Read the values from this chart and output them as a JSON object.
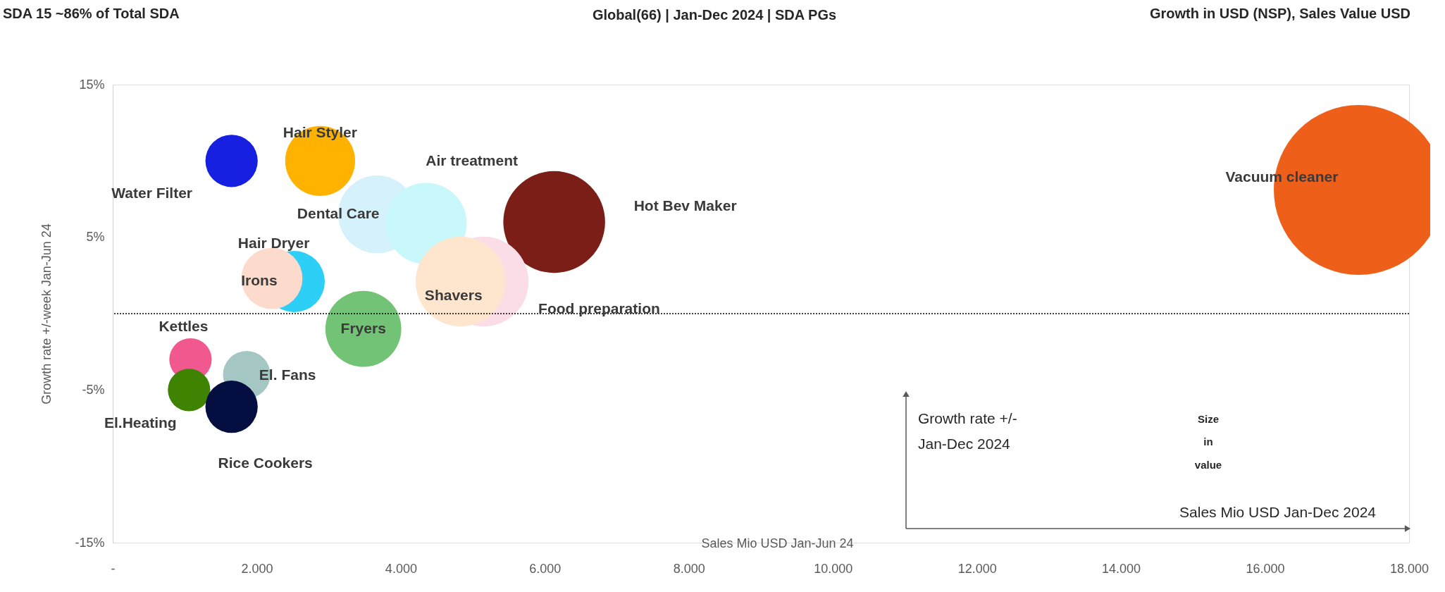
{
  "chart_data": {
    "type": "bubble",
    "title": "Global(66) | Jan-Dec 2024 | SDA PGs",
    "xlabel": "Sales Mio USD Jan-Jun 24",
    "ylabel": "Growth rate +/-week Jan-Jun 24",
    "xlim": [
      0,
      18000
    ],
    "ylim": [
      -15,
      15
    ],
    "xticks": [
      {
        "value": 0,
        "label": "-"
      },
      {
        "value": 2000,
        "label": "2.000"
      },
      {
        "value": 4000,
        "label": "4.000"
      },
      {
        "value": 6000,
        "label": "6.000"
      },
      {
        "value": 8000,
        "label": "8.000"
      },
      {
        "value": 10000,
        "label": "10.000"
      },
      {
        "value": 12000,
        "label": "12.000"
      },
      {
        "value": 14000,
        "label": "14.000"
      },
      {
        "value": 16000,
        "label": "16.000"
      },
      {
        "value": 18000,
        "label": "18.000"
      }
    ],
    "yticks": [
      {
        "value": -15,
        "label": "-15%"
      },
      {
        "value": -5,
        "label": "-5%"
      },
      {
        "value": 5,
        "label": "5%"
      },
      {
        "value": 15,
        "label": "15%"
      }
    ],
    "ref_lines": [
      {
        "axis": "y",
        "value": 0,
        "line_style": "dotted",
        "color": "#000000"
      }
    ],
    "grid": false,
    "legend": false,
    "annotations": [
      "SDA 15 ~86% of Total SDA",
      "Growth in USD (NSP), Sales Value USD",
      "Growth rate +/-",
      "Jan-Dec 2024",
      "Sales Mio USD Jan-Dec 2024",
      "Size",
      "in",
      "value"
    ],
    "series": [
      {
        "name": "Water Filter",
        "color": "#1720e0",
        "x": [
          1650
        ],
        "values": [
          10.0
        ],
        "sizes": [
          0.095
        ]
      },
      {
        "name": "Hair Styler",
        "color": "#ffb300",
        "x": [
          2880
        ],
        "values": [
          10.0
        ],
        "sizes": [
          0.17
        ]
      },
      {
        "name": "Dental Care",
        "color": "#d5f1fb",
        "x": [
          3670
        ],
        "values": [
          6.5
        ],
        "sizes": [
          0.21
        ]
      },
      {
        "name": "Air treatment",
        "color": "#c8f8fa",
        "x": [
          4350
        ],
        "values": [
          5.9
        ],
        "sizes": [
          0.23
        ]
      },
      {
        "name": "Hot Bev Maker",
        "color": "#7b1e17",
        "x": [
          6130
        ],
        "values": [
          6.0
        ],
        "sizes": [
          0.36
        ]
      },
      {
        "name": "Vacuum cleaner",
        "color": "#ee5f1a",
        "x": [
          17300
        ],
        "values": [
          8.1
        ],
        "sizes": [
          1
        ]
      },
      {
        "name": "Food preparation",
        "color": "#fadde6",
        "x": [
          5150
        ],
        "values": [
          2.1
        ],
        "sizes": [
          0.28
        ]
      },
      {
        "name": "Shavers",
        "color": "#fde6cd",
        "x": [
          4830
        ],
        "values": [
          2.1
        ],
        "sizes": [
          0.28
        ]
      },
      {
        "name": "Hair Dryer",
        "color": "#2ecff7",
        "x": [
          2520
        ],
        "values": [
          2.1
        ],
        "sizes": [
          0.13
        ]
      },
      {
        "name": "Irons",
        "color": "#fcdacc",
        "x": [
          2210
        ],
        "values": [
          2.3
        ],
        "sizes": [
          0.13
        ]
      },
      {
        "name": "Fryers",
        "color": "#72c375",
        "x": [
          3480
        ],
        "values": [
          -1.0
        ],
        "sizes": [
          0.2
        ]
      },
      {
        "name": "Kettles",
        "color": "#f0588f",
        "x": [
          1080
        ],
        "values": [
          -3.0
        ],
        "sizes": [
          0.0625
        ]
      },
      {
        "name": "El.Heating",
        "color": "#3f8302",
        "x": [
          1060
        ],
        "values": [
          -5.0
        ],
        "sizes": [
          0.0625
        ]
      },
      {
        "name": "El. Fans",
        "color": "#a5c7c3",
        "x": [
          1860
        ],
        "values": [
          -4.0
        ],
        "sizes": [
          0.078
        ]
      },
      {
        "name": "Rice Cookers",
        "color": "#050e40",
        "x": [
          1650
        ],
        "values": [
          -6.1
        ],
        "sizes": [
          0.095
        ]
      }
    ]
  }
}
